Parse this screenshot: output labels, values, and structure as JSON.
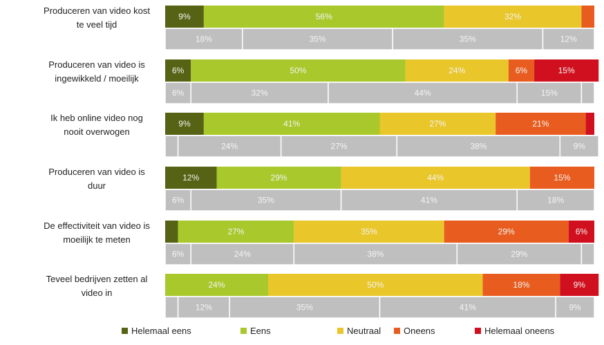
{
  "chart_data": {
    "type": "bar",
    "orientation": "horizontal",
    "stacked": true,
    "title": "",
    "xlabel": "",
    "ylabel": "",
    "xlim": [
      0,
      100
    ],
    "unit": "%",
    "grid": false,
    "legend_position": "bottom",
    "categories": [
      [
        "Produceren van video kost",
        "te veel tijd"
      ],
      [
        "Produceren van video is",
        "ingewikkeld / moeilijk"
      ],
      [
        "Ik heb online video nog",
        "nooit overwogen"
      ],
      [
        "Produceren van video is",
        "duur"
      ],
      [
        "De effectiviteit van video is",
        "moeilijk te meten"
      ],
      [
        "Teveel bedrijven zetten al",
        "video in"
      ]
    ],
    "series": [
      {
        "name": "Helemaal eens",
        "color": "#566314"
      },
      {
        "name": "Eens",
        "color": "#a8c82b"
      },
      {
        "name": "Neutraal",
        "color": "#e9c62a"
      },
      {
        "name": "Oneens",
        "color": "#e85d1f"
      },
      {
        "name": "Helemaal oneens",
        "color": "#d0101e"
      }
    ],
    "current": {
      "values": [
        [
          9,
          56,
          32,
          3,
          0
        ],
        [
          6,
          50,
          24,
          6,
          15
        ],
        [
          9,
          41,
          27,
          21,
          2
        ],
        [
          12,
          29,
          44,
          15,
          0
        ],
        [
          3,
          27,
          35,
          29,
          6
        ],
        [
          0,
          24,
          50,
          18,
          9
        ]
      ],
      "labels": [
        [
          "9%",
          "56%",
          "32%",
          "",
          ""
        ],
        [
          "6%",
          "50%",
          "24%",
          "6%",
          "15%"
        ],
        [
          "9%",
          "41%",
          "27%",
          "21%",
          ""
        ],
        [
          "12%",
          "29%",
          "44%",
          "15%",
          ""
        ],
        [
          "",
          "27%",
          "35%",
          "29%",
          "6%"
        ],
        [
          "",
          "24%",
          "50%",
          "18%",
          "9%"
        ]
      ]
    },
    "comparison": {
      "color": "#bfbfbf",
      "values": [
        [
          18,
          35,
          35,
          12,
          0
        ],
        [
          6,
          32,
          44,
          15,
          3
        ],
        [
          3,
          24,
          27,
          38,
          9
        ],
        [
          6,
          35,
          41,
          18,
          0
        ],
        [
          6,
          24,
          38,
          29,
          3
        ],
        [
          3,
          12,
          35,
          41,
          9
        ]
      ],
      "labels": [
        [
          "18%",
          "35%",
          "35%",
          "12%",
          ""
        ],
        [
          "6%",
          "32%",
          "44%",
          "15%",
          ""
        ],
        [
          "",
          "24%",
          "27%",
          "38%",
          "9%"
        ],
        [
          "6%",
          "35%",
          "41%",
          "18%",
          ""
        ],
        [
          "6%",
          "24%",
          "38%",
          "29%",
          ""
        ],
        [
          "",
          "12%",
          "35%",
          "41%",
          "9%"
        ]
      ]
    }
  }
}
